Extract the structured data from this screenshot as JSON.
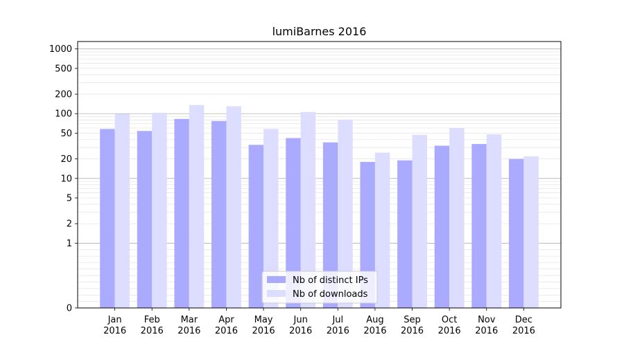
{
  "chart_data": {
    "type": "bar",
    "title": "lumiBarnes 2016",
    "xlabel": "",
    "ylabel": "",
    "y_scale": "symlog",
    "ylim": [
      0,
      1300
    ],
    "y_ticks": [
      0,
      1,
      2,
      5,
      10,
      20,
      50,
      100,
      200,
      500,
      1000
    ],
    "y_tick_labels": [
      "0",
      "1",
      "2",
      "5",
      "10",
      "20",
      "50",
      "100",
      "200",
      "500",
      "1000"
    ],
    "grid": "y",
    "legend_position": "bottom-center",
    "categories": [
      [
        "Jan",
        "2016"
      ],
      [
        "Feb",
        "2016"
      ],
      [
        "Mar",
        "2016"
      ],
      [
        "Apr",
        "2016"
      ],
      [
        "May",
        "2016"
      ],
      [
        "Jun",
        "2016"
      ],
      [
        "Jul",
        "2016"
      ],
      [
        "Aug",
        "2016"
      ],
      [
        "Sep",
        "2016"
      ],
      [
        "Oct",
        "2016"
      ],
      [
        "Nov",
        "2016"
      ],
      [
        "Dec",
        "2016"
      ]
    ],
    "series": [
      {
        "name": "Nb of distinct IPs",
        "color": "#aaaaff",
        "values": [
          58,
          54,
          83,
          77,
          33,
          42,
          36,
          18,
          19,
          32,
          34,
          20
        ]
      },
      {
        "name": "Nb of downloads",
        "color": "#ddddff",
        "values": [
          99,
          103,
          136,
          130,
          58,
          106,
          81,
          25,
          47,
          60,
          48,
          22
        ]
      }
    ]
  }
}
